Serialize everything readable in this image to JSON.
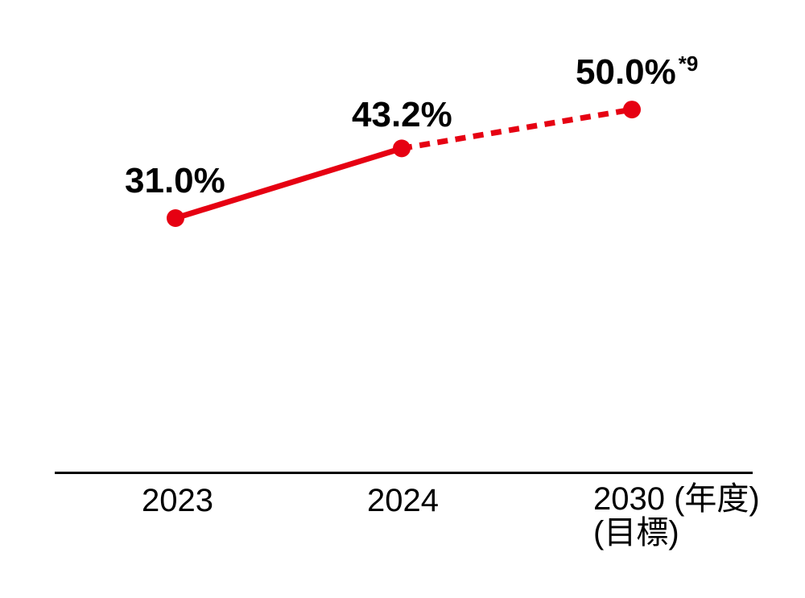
{
  "chart_data": {
    "type": "line",
    "title": "",
    "categories": [
      "2023",
      "2024",
      "2030"
    ],
    "points": [
      {
        "category": "2023",
        "value": 31.0,
        "label": "31.0%"
      },
      {
        "category": "2024",
        "value": 43.2,
        "label": "43.2%"
      },
      {
        "category": "2030",
        "value": 50.0,
        "label": "50.0%",
        "label_suffix": "*9"
      }
    ],
    "segments": [
      {
        "from": 0,
        "to": 1,
        "style": "solid"
      },
      {
        "from": 1,
        "to": 2,
        "style": "dashed"
      }
    ],
    "x_tick_labels": [
      {
        "lines": [
          "2023"
        ]
      },
      {
        "lines": [
          "2024"
        ]
      },
      {
        "lines": [
          "2030 (年度)",
          "(目標)"
        ]
      }
    ],
    "line_color": "#e60012",
    "point_color": "#e60012",
    "text_color": "#000000",
    "axis_color": "#000000",
    "grid": false,
    "legend_position": "none",
    "y_axis_visible": false,
    "x_axis_line": true
  }
}
